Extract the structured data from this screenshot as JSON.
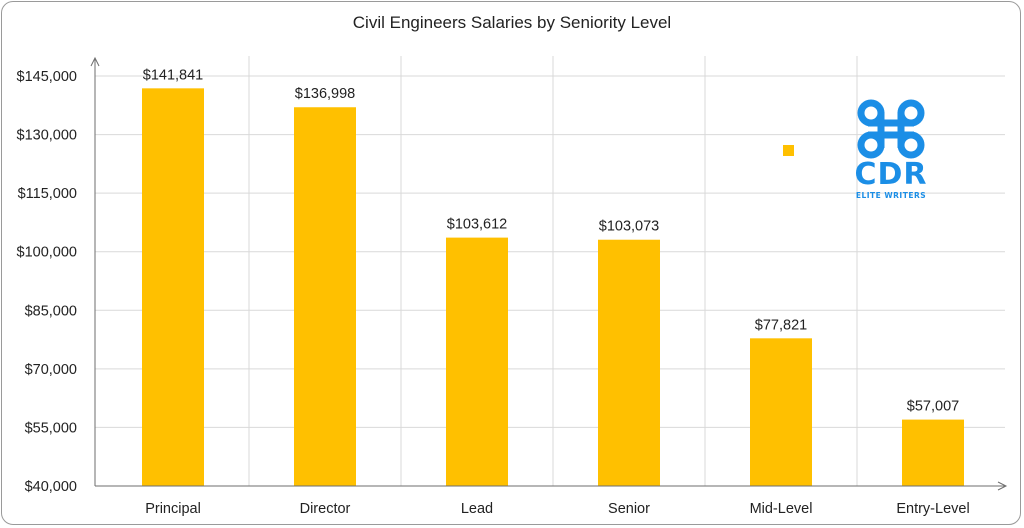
{
  "chart_data": {
    "type": "bar",
    "title": "Civil Engineers Salaries by Seniority Level",
    "categories": [
      "Principal",
      "Director",
      "Lead",
      "Senior",
      "Mid-Level",
      "Entry-Level"
    ],
    "values": [
      141841,
      136998,
      103612,
      103073,
      77821,
      57007
    ],
    "value_labels": [
      "$141,841",
      "$136,998",
      "$103,612",
      "$103,073",
      "$77,821",
      "$57,007"
    ],
    "y_ticks": [
      40000,
      55000,
      70000,
      85000,
      100000,
      115000,
      130000,
      145000
    ],
    "y_tick_labels": [
      "$40,000",
      "$55,000",
      "$70,000",
      "$85,000",
      "$100,000",
      "$115,000",
      "$130,000",
      "$145,000"
    ],
    "ylim": [
      40000,
      145000
    ],
    "xlabel": "",
    "ylabel": "",
    "grid": true,
    "bar_color": "#FFC000",
    "grid_color": "#D9D9D9"
  },
  "logo": {
    "text": "CDR",
    "subtext": "ELITE WRITERS",
    "color": "#1B8EE6"
  },
  "legend_marker_color": "#FFC000"
}
